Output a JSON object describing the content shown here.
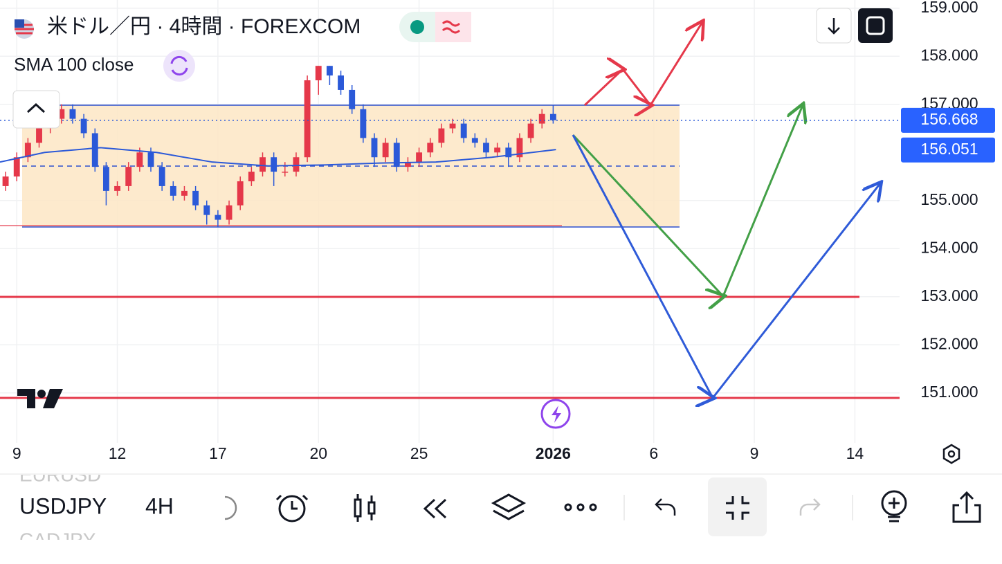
{
  "header": {
    "title": "米ドル／円 · 4時間 · FOREXCOM"
  },
  "chart_data": {
    "type": "candlestick",
    "x": [
      -2,
      0,
      2,
      4,
      6,
      8,
      10,
      12,
      14,
      16,
      18,
      20,
      22,
      24,
      26,
      28,
      30,
      32,
      34,
      36,
      38,
      40,
      42,
      44,
      46,
      48,
      50,
      52,
      54,
      56,
      58,
      60,
      62,
      64,
      66,
      68,
      70,
      72,
      74,
      76,
      78,
      80,
      82,
      84,
      86,
      88,
      90,
      92,
      94,
      96
    ],
    "open": [
      155.3,
      155.5,
      155.9,
      156.2,
      156.5,
      156.7,
      156.9,
      156.7,
      156.4,
      155.7,
      155.2,
      155.3,
      155.7,
      156.0,
      155.7,
      155.3,
      155.1,
      155.2,
      154.9,
      154.7,
      154.6,
      154.9,
      155.4,
      155.6,
      155.9,
      155.6,
      155.6,
      155.9,
      157.5,
      157.8,
      157.6,
      157.3,
      156.9,
      156.3,
      155.9,
      156.2,
      155.7,
      155.8,
      156.0,
      156.2,
      156.5,
      156.6,
      156.3,
      156.2,
      156.0,
      156.1,
      155.9,
      156.3,
      156.6,
      156.8
    ],
    "high": [
      155.6,
      156.0,
      156.3,
      156.6,
      156.8,
      157.0,
      157.0,
      156.8,
      156.5,
      155.8,
      155.4,
      155.8,
      156.1,
      156.1,
      155.8,
      155.4,
      155.3,
      155.3,
      155.0,
      154.8,
      155.0,
      155.5,
      155.7,
      156.0,
      156.0,
      155.8,
      156.0,
      157.6,
      157.8,
      157.8,
      157.7,
      157.4,
      157.0,
      156.4,
      156.3,
      156.3,
      155.9,
      156.1,
      156.3,
      156.6,
      156.7,
      156.7,
      156.4,
      156.3,
      156.2,
      156.2,
      156.4,
      156.7,
      156.9,
      156.98
    ],
    "low": [
      155.2,
      155.4,
      155.8,
      156.1,
      156.4,
      156.6,
      156.6,
      156.3,
      155.6,
      154.9,
      155.1,
      155.2,
      155.6,
      155.6,
      155.2,
      155.0,
      155.0,
      154.8,
      154.5,
      154.45,
      154.5,
      154.8,
      155.3,
      155.5,
      155.3,
      155.5,
      155.5,
      155.8,
      157.2,
      157.4,
      157.2,
      156.8,
      156.2,
      155.7,
      155.8,
      155.6,
      155.6,
      155.7,
      155.9,
      156.1,
      156.4,
      156.2,
      156.1,
      155.9,
      155.9,
      155.7,
      155.8,
      156.2,
      156.5,
      156.6
    ],
    "close": [
      155.5,
      155.9,
      156.2,
      156.5,
      156.7,
      156.9,
      156.7,
      156.4,
      155.7,
      155.2,
      155.3,
      155.7,
      156.0,
      155.7,
      155.3,
      155.1,
      155.2,
      154.9,
      154.7,
      154.6,
      154.9,
      155.4,
      155.6,
      155.9,
      155.6,
      155.6,
      155.9,
      157.5,
      157.8,
      157.6,
      157.3,
      156.9,
      156.3,
      155.9,
      156.2,
      155.7,
      155.8,
      156.0,
      156.2,
      156.5,
      156.6,
      156.3,
      156.2,
      156.0,
      156.1,
      155.9,
      156.3,
      156.6,
      156.8,
      156.67
    ],
    "up_color": "#e5384a",
    "down_color": "#2b59d8",
    "series": [
      {
        "name": "SMA 100 close",
        "color": "#2b59d8",
        "x": [
          -3,
          5,
          15,
          25,
          35,
          45,
          55,
          65,
          75,
          85,
          96.5
        ],
        "values": [
          155.8,
          156.0,
          156.1,
          156.0,
          155.8,
          155.72,
          155.74,
          155.78,
          155.8,
          155.9,
          156.06
        ]
      }
    ],
    "xlim": [
      -3,
      158
    ],
    "ylim": [
      149.96,
      159.17
    ],
    "xticks": [
      {
        "value": 0,
        "label": "9"
      },
      {
        "value": 18,
        "label": "12"
      },
      {
        "value": 36,
        "label": "17"
      },
      {
        "value": 54,
        "label": "20"
      },
      {
        "value": 72,
        "label": "25"
      },
      {
        "value": 96,
        "label": "2026"
      },
      {
        "value": 114,
        "label": "6"
      },
      {
        "value": 132,
        "label": "9"
      },
      {
        "value": 150,
        "label": "14"
      }
    ],
    "yticks": [
      {
        "value": 159,
        "label": "159.000"
      },
      {
        "value": 158,
        "label": "158.000"
      },
      {
        "value": 157,
        "label": "157.000"
      },
      {
        "value": 155,
        "label": "155.000"
      },
      {
        "value": 154,
        "label": "154.000"
      },
      {
        "value": 153,
        "label": "153.000"
      },
      {
        "value": 152,
        "label": "152.000"
      },
      {
        "value": 151,
        "label": "151.000"
      }
    ],
    "price_labels": [
      156.668,
      156.051
    ]
  },
  "toolbar": {
    "symbol": "USDJPY",
    "interval": "4H",
    "watchlist": [
      "EURUSD",
      "CADJPY"
    ]
  }
}
